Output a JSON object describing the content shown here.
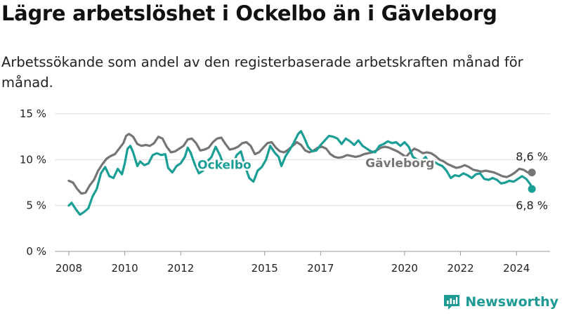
{
  "title": "Lägre arbetslöshet i Ockelbo än i Gävleborg",
  "subtitle": "Arbetssökande som andel av den registerbaserade arbetskraften månad för månad.",
  "brand": {
    "name": "Newsworthy",
    "icon": "bar-chart-logo-icon",
    "color": "#1c9a93"
  },
  "colors": {
    "ockelbo": "#1a9e95",
    "gavleborg": "#757575",
    "grid": "#dddddd"
  },
  "chart_data": {
    "type": "line",
    "ylim": [
      0,
      15
    ],
    "yticks": [
      0,
      5,
      10,
      15
    ],
    "ytick_labels": [
      "0 %",
      "5 %",
      "10 %",
      "15 %"
    ],
    "xlim": [
      2007.5,
      2025.2
    ],
    "xticks": [
      2008,
      2010,
      2012,
      2015,
      2017,
      2020,
      2022,
      2024
    ],
    "xtick_labels": [
      "2008",
      "2010",
      "2012",
      "2015",
      "2017",
      "2020",
      "2022",
      "2024"
    ],
    "grid": true,
    "series": [
      {
        "name": "Gävleborg",
        "color": "#757575",
        "label_position": [
          2018.6,
          9.2
        ],
        "end_label": "8,6 %",
        "points": [
          [
            2008.0,
            7.7
          ],
          [
            2008.15,
            7.5
          ],
          [
            2008.3,
            6.8
          ],
          [
            2008.45,
            6.3
          ],
          [
            2008.6,
            6.4
          ],
          [
            2008.75,
            7.2
          ],
          [
            2008.9,
            7.8
          ],
          [
            2009.05,
            8.8
          ],
          [
            2009.2,
            9.5
          ],
          [
            2009.35,
            10.1
          ],
          [
            2009.5,
            10.4
          ],
          [
            2009.65,
            10.6
          ],
          [
            2009.8,
            11.2
          ],
          [
            2009.95,
            11.8
          ],
          [
            2010.05,
            12.6
          ],
          [
            2010.15,
            12.8
          ],
          [
            2010.3,
            12.5
          ],
          [
            2010.45,
            11.7
          ],
          [
            2010.6,
            11.5
          ],
          [
            2010.75,
            11.6
          ],
          [
            2010.9,
            11.5
          ],
          [
            2011.05,
            11.8
          ],
          [
            2011.2,
            12.5
          ],
          [
            2011.35,
            12.3
          ],
          [
            2011.5,
            11.4
          ],
          [
            2011.65,
            10.8
          ],
          [
            2011.8,
            10.9
          ],
          [
            2011.95,
            11.2
          ],
          [
            2012.1,
            11.5
          ],
          [
            2012.25,
            12.2
          ],
          [
            2012.4,
            12.3
          ],
          [
            2012.55,
            11.8
          ],
          [
            2012.7,
            11.0
          ],
          [
            2012.85,
            11.1
          ],
          [
            2013.0,
            11.3
          ],
          [
            2013.15,
            11.9
          ],
          [
            2013.3,
            12.3
          ],
          [
            2013.45,
            12.4
          ],
          [
            2013.6,
            11.7
          ],
          [
            2013.75,
            11.1
          ],
          [
            2013.9,
            11.2
          ],
          [
            2014.05,
            11.4
          ],
          [
            2014.2,
            11.8
          ],
          [
            2014.35,
            11.9
          ],
          [
            2014.5,
            11.5
          ],
          [
            2014.65,
            10.6
          ],
          [
            2014.8,
            10.8
          ],
          [
            2014.95,
            11.3
          ],
          [
            2015.1,
            11.8
          ],
          [
            2015.25,
            11.9
          ],
          [
            2015.4,
            11.3
          ],
          [
            2015.55,
            10.9
          ],
          [
            2015.7,
            10.8
          ],
          [
            2015.85,
            11.1
          ],
          [
            2016.0,
            11.5
          ],
          [
            2016.15,
            11.9
          ],
          [
            2016.3,
            11.6
          ],
          [
            2016.45,
            11.0
          ],
          [
            2016.6,
            10.8
          ],
          [
            2016.75,
            11.0
          ],
          [
            2016.9,
            11.3
          ],
          [
            2017.05,
            11.4
          ],
          [
            2017.2,
            11.2
          ],
          [
            2017.35,
            10.6
          ],
          [
            2017.5,
            10.3
          ],
          [
            2017.65,
            10.2
          ],
          [
            2017.8,
            10.3
          ],
          [
            2017.95,
            10.5
          ],
          [
            2018.1,
            10.4
          ],
          [
            2018.25,
            10.3
          ],
          [
            2018.4,
            10.4
          ],
          [
            2018.55,
            10.6
          ],
          [
            2018.7,
            10.7
          ],
          [
            2018.85,
            10.8
          ],
          [
            2019.0,
            11.0
          ],
          [
            2019.15,
            11.3
          ],
          [
            2019.3,
            11.4
          ],
          [
            2019.45,
            11.3
          ],
          [
            2019.6,
            11.1
          ],
          [
            2019.75,
            10.9
          ],
          [
            2019.9,
            10.6
          ],
          [
            2020.05,
            10.3
          ],
          [
            2020.2,
            10.8
          ],
          [
            2020.35,
            11.2
          ],
          [
            2020.5,
            11.0
          ],
          [
            2020.65,
            10.7
          ],
          [
            2020.8,
            10.8
          ],
          [
            2020.95,
            10.7
          ],
          [
            2021.1,
            10.4
          ],
          [
            2021.25,
            10.0
          ],
          [
            2021.4,
            9.8
          ],
          [
            2021.55,
            9.5
          ],
          [
            2021.7,
            9.3
          ],
          [
            2021.85,
            9.1
          ],
          [
            2022.0,
            9.2
          ],
          [
            2022.15,
            9.4
          ],
          [
            2022.3,
            9.2
          ],
          [
            2022.45,
            8.9
          ],
          [
            2022.6,
            8.8
          ],
          [
            2022.75,
            8.7
          ],
          [
            2022.9,
            8.8
          ],
          [
            2023.05,
            8.7
          ],
          [
            2023.2,
            8.6
          ],
          [
            2023.35,
            8.4
          ],
          [
            2023.5,
            8.2
          ],
          [
            2023.65,
            8.1
          ],
          [
            2023.8,
            8.3
          ],
          [
            2023.95,
            8.6
          ],
          [
            2024.1,
            9.0
          ],
          [
            2024.25,
            8.9
          ],
          [
            2024.4,
            8.6
          ],
          [
            2024.55,
            8.6
          ]
        ]
      },
      {
        "name": "Ockelbo",
        "color": "#1a9e95",
        "label_position": [
          2012.6,
          9.0
        ],
        "end_label": "6,8 %",
        "points": [
          [
            2008.0,
            5.0
          ],
          [
            2008.1,
            5.3
          ],
          [
            2008.25,
            4.6
          ],
          [
            2008.4,
            4.0
          ],
          [
            2008.55,
            4.3
          ],
          [
            2008.7,
            4.7
          ],
          [
            2008.85,
            6.0
          ],
          [
            2009.0,
            6.8
          ],
          [
            2009.15,
            8.5
          ],
          [
            2009.3,
            9.2
          ],
          [
            2009.45,
            8.2
          ],
          [
            2009.6,
            8.0
          ],
          [
            2009.75,
            9.0
          ],
          [
            2009.9,
            8.4
          ],
          [
            2010.0,
            9.6
          ],
          [
            2010.1,
            11.2
          ],
          [
            2010.2,
            11.5
          ],
          [
            2010.3,
            10.8
          ],
          [
            2010.45,
            9.3
          ],
          [
            2010.55,
            9.8
          ],
          [
            2010.7,
            9.4
          ],
          [
            2010.85,
            9.6
          ],
          [
            2011.0,
            10.5
          ],
          [
            2011.15,
            10.7
          ],
          [
            2011.3,
            10.5
          ],
          [
            2011.45,
            10.6
          ],
          [
            2011.55,
            9.1
          ],
          [
            2011.7,
            8.6
          ],
          [
            2011.85,
            9.3
          ],
          [
            2012.0,
            9.6
          ],
          [
            2012.15,
            10.3
          ],
          [
            2012.25,
            11.3
          ],
          [
            2012.35,
            10.8
          ],
          [
            2012.5,
            9.5
          ],
          [
            2012.65,
            8.5
          ],
          [
            2012.8,
            8.8
          ],
          [
            2012.95,
            9.8
          ],
          [
            2013.1,
            10.3
          ],
          [
            2013.25,
            11.4
          ],
          [
            2013.4,
            10.5
          ],
          [
            2013.55,
            9.3
          ],
          [
            2013.7,
            9.0
          ],
          [
            2013.85,
            9.3
          ],
          [
            2014.0,
            10.5
          ],
          [
            2014.15,
            10.9
          ],
          [
            2014.3,
            9.3
          ],
          [
            2014.45,
            8.0
          ],
          [
            2014.6,
            7.6
          ],
          [
            2014.75,
            8.8
          ],
          [
            2014.9,
            9.2
          ],
          [
            2015.05,
            10.0
          ],
          [
            2015.2,
            11.5
          ],
          [
            2015.35,
            10.8
          ],
          [
            2015.5,
            10.3
          ],
          [
            2015.6,
            9.3
          ],
          [
            2015.75,
            10.4
          ],
          [
            2015.9,
            11.1
          ],
          [
            2016.05,
            11.9
          ],
          [
            2016.2,
            12.8
          ],
          [
            2016.3,
            13.1
          ],
          [
            2016.4,
            12.5
          ],
          [
            2016.55,
            11.4
          ],
          [
            2016.7,
            10.9
          ],
          [
            2016.85,
            11.0
          ],
          [
            2017.0,
            11.6
          ],
          [
            2017.15,
            12.1
          ],
          [
            2017.3,
            12.6
          ],
          [
            2017.45,
            12.5
          ],
          [
            2017.6,
            12.3
          ],
          [
            2017.75,
            11.7
          ],
          [
            2017.9,
            12.3
          ],
          [
            2018.05,
            12.0
          ],
          [
            2018.2,
            11.6
          ],
          [
            2018.35,
            12.1
          ],
          [
            2018.5,
            11.5
          ],
          [
            2018.65,
            11.2
          ],
          [
            2018.8,
            10.9
          ],
          [
            2018.95,
            10.8
          ],
          [
            2019.1,
            11.5
          ],
          [
            2019.25,
            11.7
          ],
          [
            2019.4,
            12.0
          ],
          [
            2019.55,
            11.8
          ],
          [
            2019.7,
            11.9
          ],
          [
            2019.85,
            11.5
          ],
          [
            2020.0,
            11.9
          ],
          [
            2020.15,
            11.4
          ],
          [
            2020.3,
            10.3
          ],
          [
            2020.45,
            10.0
          ],
          [
            2020.6,
            9.8
          ],
          [
            2020.75,
            10.3
          ],
          [
            2020.9,
            9.4
          ],
          [
            2021.05,
            9.8
          ],
          [
            2021.2,
            9.5
          ],
          [
            2021.35,
            9.3
          ],
          [
            2021.5,
            8.8
          ],
          [
            2021.65,
            8.0
          ],
          [
            2021.8,
            8.3
          ],
          [
            2021.95,
            8.2
          ],
          [
            2022.1,
            8.5
          ],
          [
            2022.25,
            8.3
          ],
          [
            2022.4,
            8.0
          ],
          [
            2022.55,
            8.4
          ],
          [
            2022.7,
            8.5
          ],
          [
            2022.85,
            7.9
          ],
          [
            2023.0,
            7.8
          ],
          [
            2023.15,
            8.0
          ],
          [
            2023.3,
            7.8
          ],
          [
            2023.45,
            7.4
          ],
          [
            2023.6,
            7.5
          ],
          [
            2023.75,
            7.7
          ],
          [
            2023.9,
            7.6
          ],
          [
            2024.05,
            7.9
          ],
          [
            2024.2,
            8.2
          ],
          [
            2024.35,
            7.9
          ],
          [
            2024.5,
            7.3
          ],
          [
            2024.55,
            6.8
          ]
        ]
      }
    ]
  }
}
